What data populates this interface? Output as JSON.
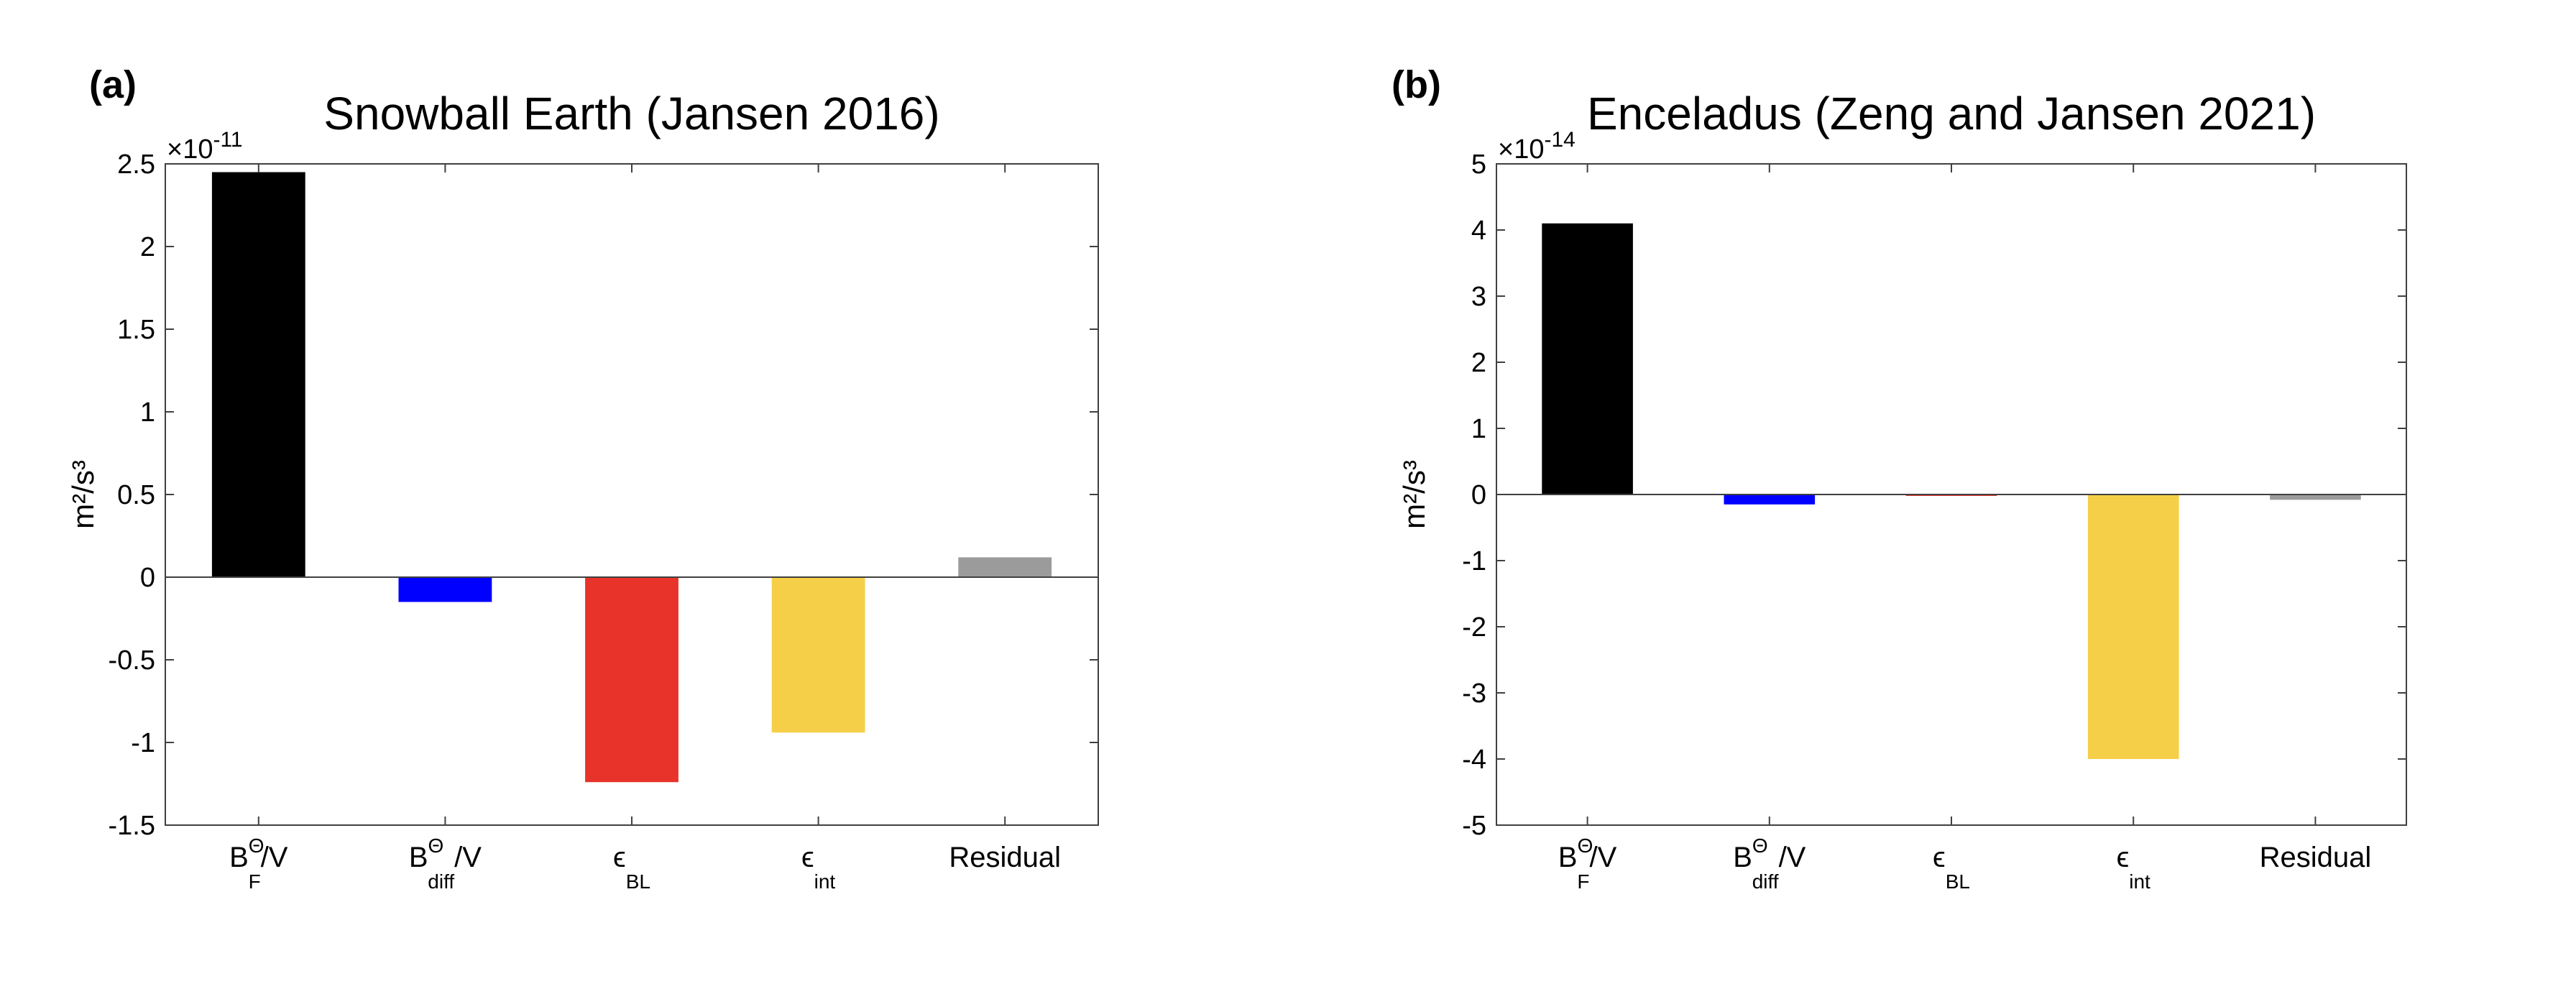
{
  "chart_data": [
    {
      "type": "bar",
      "panel_label": "(a)",
      "title": "Snowball Earth (Jansen 2016)",
      "ylabel": "m²/s³",
      "y_exponent_label": "×10",
      "y_exponent_power": "-11",
      "ylim": [
        -1.5,
        2.5
      ],
      "yticks": [
        -1.5,
        -1,
        -0.5,
        0,
        0.5,
        1,
        1.5,
        2,
        2.5
      ],
      "ytick_labels": [
        "-1.5",
        "-1",
        "-0.5",
        "0",
        "0.5",
        "1",
        "1.5",
        "2",
        "2.5"
      ],
      "categories": [
        {
          "main": "B",
          "sup": "Θ",
          "sub": "F",
          "suffix": "/V",
          "label": "B_F^Θ/V"
        },
        {
          "main": "B",
          "sup": "Θ",
          "sub": "diff",
          "suffix": "/V",
          "label": "B_diff^Θ/V"
        },
        {
          "main": "ϵ",
          "sup": "",
          "sub": "BL",
          "suffix": "",
          "label": "ϵ_BL"
        },
        {
          "main": "ϵ",
          "sup": "",
          "sub": "int",
          "suffix": "",
          "label": "ϵ_int"
        },
        {
          "main": "Residual",
          "sup": "",
          "sub": "",
          "suffix": "",
          "label": "Residual"
        }
      ],
      "values": [
        2.45,
        -0.15,
        -1.24,
        -0.94,
        0.12
      ],
      "colors": [
        "#000000",
        "#0000ff",
        "#e8332a",
        "#f5cf47",
        "#9b9b9b"
      ]
    },
    {
      "type": "bar",
      "panel_label": "(b)",
      "title": "Enceladus (Zeng and Jansen 2021)",
      "ylabel": "m²/s³",
      "y_exponent_label": "×10",
      "y_exponent_power": "-14",
      "ylim": [
        -5,
        5
      ],
      "yticks": [
        -5,
        -4,
        -3,
        -2,
        -1,
        0,
        1,
        2,
        3,
        4,
        5
      ],
      "ytick_labels": [
        "-5",
        "-4",
        "-3",
        "-2",
        "-1",
        "0",
        "1",
        "2",
        "3",
        "4",
        "5"
      ],
      "categories": [
        {
          "main": "B",
          "sup": "Θ",
          "sub": "F",
          "suffix": "/V",
          "label": "B_F^Θ/V"
        },
        {
          "main": "B",
          "sup": "Θ",
          "sub": "diff",
          "suffix": "/V",
          "label": "B_diff^Θ/V"
        },
        {
          "main": "ϵ",
          "sup": "",
          "sub": "BL",
          "suffix": "",
          "label": "ϵ_BL"
        },
        {
          "main": "ϵ",
          "sup": "",
          "sub": "int",
          "suffix": "",
          "label": "ϵ_int"
        },
        {
          "main": "Residual",
          "sup": "",
          "sub": "",
          "suffix": "",
          "label": "Residual"
        }
      ],
      "values": [
        4.1,
        -0.15,
        -0.02,
        -4.0,
        -0.08
      ],
      "colors": [
        "#000000",
        "#0000ff",
        "#e8332a",
        "#f5cf47",
        "#9b9b9b"
      ]
    }
  ]
}
